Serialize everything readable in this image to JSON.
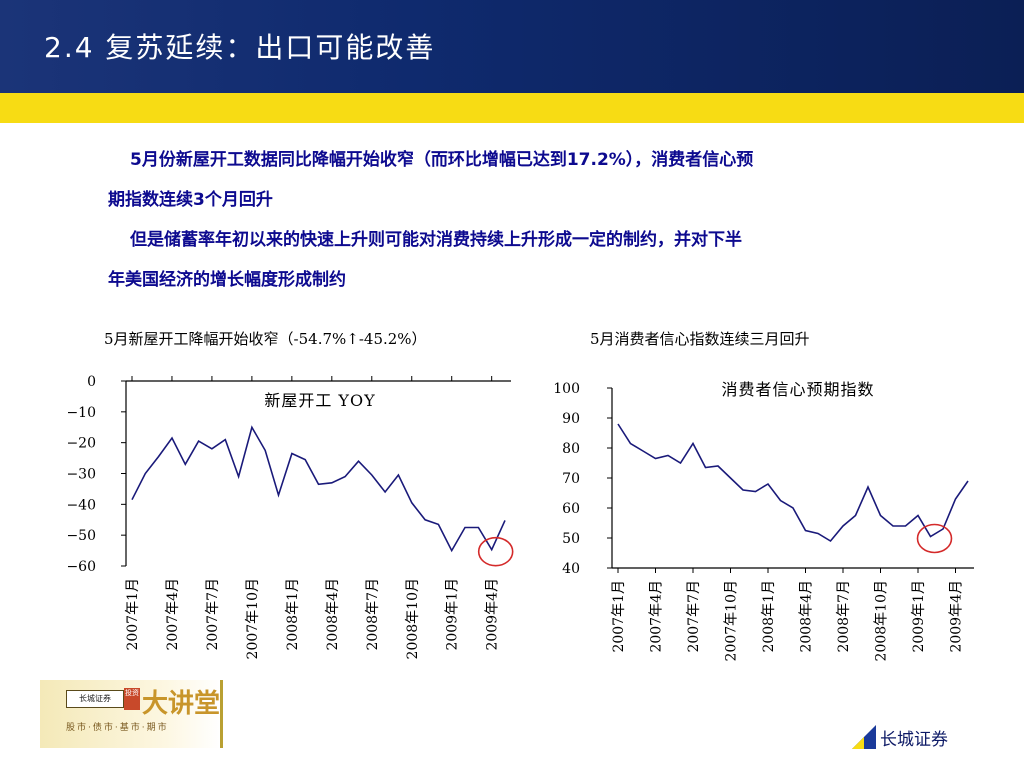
{
  "header": {
    "title": "2.4  复苏延续：出口可能改善"
  },
  "body": {
    "para1_line1": "5月份新屋开工数据同比降幅开始收窄（而环比增幅已达到17.2%），消费者信心预",
    "para1_line2": "期指数连续3个月回升",
    "para2_line1": "但是储蓄率年初以来的快速上升则可能对消费持续上升形成一定的制约，并对下半",
    "para2_line2": "年美国经济的增长幅度形成制约"
  },
  "chart_titles": {
    "left": "5月新屋开工降幅开始收窄（-54.7%↑-45.2%）",
    "right": "5月消费者信心指数连续三月回升"
  },
  "footer": {
    "logo_box": "长城证券",
    "logo_tag": "投资",
    "logo_main": "大讲堂",
    "logo_sub": "股市·债市·基市·期市",
    "brand": "长城证券",
    "brand_color": "#0d1a66"
  },
  "chart_data": [
    {
      "type": "line",
      "title": "新屋开工 YOY",
      "x": [
        "2007年1月",
        "2007年2月",
        "2007年3月",
        "2007年4月",
        "2007年5月",
        "2007年6月",
        "2007年7月",
        "2007年8月",
        "2007年9月",
        "2007年10月",
        "2007年11月",
        "2007年12月",
        "2008年1月",
        "2008年2月",
        "2008年3月",
        "2008年4月",
        "2008年5月",
        "2008年6月",
        "2008年7月",
        "2008年8月",
        "2008年9月",
        "2008年10月",
        "2008年11月",
        "2008年12月",
        "2009年1月",
        "2009年2月",
        "2009年3月",
        "2009年4月",
        "2009年5月"
      ],
      "x_tick_labels": [
        "2007年1月",
        "2007年4月",
        "2007年7月",
        "2007年10月",
        "2008年1月",
        "2008年4月",
        "2008年7月",
        "2008年10月",
        "2009年1月",
        "2009年4月"
      ],
      "series": [
        {
          "values": [
            -38.5,
            -30,
            -24.5,
            -18.5,
            -27,
            -19.5,
            -22,
            -19,
            -31,
            -15,
            -22.5,
            -37,
            -23.5,
            -25.5,
            -33.5,
            -33,
            -31,
            -26,
            -30.5,
            -36,
            -30.5,
            -39.5,
            -45,
            -46.5,
            -55,
            -47.5,
            -47.5,
            -54.7,
            -45.2
          ]
        }
      ],
      "y_ticks": [
        0,
        -10,
        -20,
        -30,
        -40,
        -50,
        -60
      ],
      "ylim": [
        -60,
        0
      ],
      "highlight": {
        "index": 27,
        "shape": "circle",
        "color": "#d42a2a"
      },
      "line_color": "#1a1a7a"
    },
    {
      "type": "line",
      "title": "消费者信心预期指数",
      "x": [
        "2007年1月",
        "2007年2月",
        "2007年3月",
        "2007年4月",
        "2007年5月",
        "2007年6月",
        "2007年7月",
        "2007年8月",
        "2007年9月",
        "2007年10月",
        "2007年11月",
        "2007年12月",
        "2008年1月",
        "2008年2月",
        "2008年3月",
        "2008年4月",
        "2008年5月",
        "2008年6月",
        "2008年7月",
        "2008年8月",
        "2008年9月",
        "2008年10月",
        "2008年11月",
        "2008年12月",
        "2009年1月",
        "2009年2月",
        "2009年3月",
        "2009年4月",
        "2009年5月"
      ],
      "x_tick_labels": [
        "2007年1月",
        "2007年4月",
        "2007年7月",
        "2007年10月",
        "2008年1月",
        "2008年4月",
        "2008年7月",
        "2008年10月",
        "2009年1月",
        "2009年4月"
      ],
      "series": [
        {
          "values": [
            88,
            81.5,
            79,
            76.5,
            77.5,
            75,
            81.5,
            73.5,
            74,
            70,
            66,
            65.5,
            68,
            62.5,
            60,
            52.5,
            51.5,
            49,
            54,
            57.5,
            67,
            57.5,
            54,
            54,
            57.5,
            50.5,
            53,
            63,
            69
          ]
        }
      ],
      "y_ticks": [
        100,
        90,
        80,
        70,
        60,
        50,
        40
      ],
      "ylim": [
        40,
        100
      ],
      "highlight": {
        "index": 25,
        "shape": "circle",
        "color": "#d42a2a"
      },
      "line_color": "#1a1a7a"
    }
  ]
}
